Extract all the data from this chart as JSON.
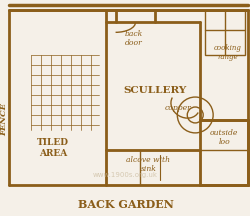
{
  "bg_color": "#f5f0e8",
  "wall_color": "#8B5E1A",
  "wall_lw": 2.0,
  "thin_lw": 1.0,
  "text_color": "#8B5E1A",
  "watermark_color": "#c8b89a",
  "title": "BACK GARDEN",
  "labels": {
    "fence": "FENCE",
    "tiled_area": "TILED\nAREA",
    "scullery": "SCULLERY",
    "back_door": "back\ndoor",
    "cooking_range": "cooking\nrange",
    "copper": "copper",
    "alcove_sink": "alcove with\nsink",
    "outside_loo": "outside\nloo",
    "watermark": "www.1900s.org.uk"
  }
}
